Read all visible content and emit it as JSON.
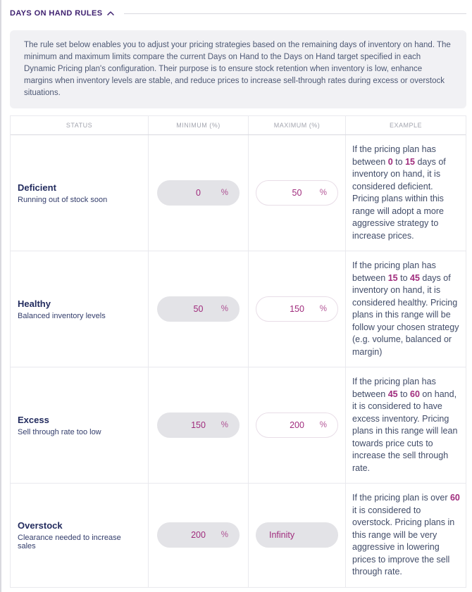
{
  "colors": {
    "brand-purple": "#3f2170",
    "value-magenta": "#a02c7d",
    "status-navy": "#222b5e",
    "subtitle-navy": "#333d6b",
    "body-slate": "#4d5874",
    "example-slate": "#414c68",
    "muted-gray": "#a2a4ae",
    "pill-disabled-bg": "#e3e3e7",
    "panel-bg": "#f1f1f4",
    "border-light": "#e9e9ee",
    "border-mid": "#d9d9df"
  },
  "section": {
    "title": "DAYS ON HAND RULES",
    "collapse_icon": "chevron-up",
    "description": "The rule set below enables you to adjust your pricing strategies based on the remaining days of inventory on hand. The minimum and maximum limits compare the current Days on Hand to the Days on Hand target specified in each Dynamic Pricing plan's configuration. Their purpose is to ensure stock retention when inventory is low, enhance margins when inventory levels are stable, and reduce prices to increase sell-through rates during excess or overstock situations."
  },
  "table": {
    "headers": [
      "STATUS",
      "MINIMUM (%)",
      "MAXIMUM (%)",
      "EXAMPLE"
    ],
    "rows": [
      {
        "status": "Deficient",
        "description": "Running out of stock soon",
        "minimum": {
          "value": "0",
          "suffix": "%",
          "disabled": true
        },
        "maximum": {
          "value": "50",
          "suffix": "%",
          "disabled": false
        },
        "example": [
          {
            "text": "If the pricing plan has between "
          },
          {
            "text": "0",
            "bold": true
          },
          {
            "text": " to "
          },
          {
            "text": "15",
            "bold": true
          },
          {
            "text": " days of inventory on hand, it is considered deficient. Pricing plans within this range will adopt a more aggressive strategy to increase prices."
          }
        ]
      },
      {
        "status": "Healthy",
        "description": "Balanced inventory levels",
        "minimum": {
          "value": "50",
          "suffix": "%",
          "disabled": true
        },
        "maximum": {
          "value": "150",
          "suffix": "%",
          "disabled": false
        },
        "example": [
          {
            "text": "If the pricing plan has between "
          },
          {
            "text": "15",
            "bold": true
          },
          {
            "text": " to "
          },
          {
            "text": "45",
            "bold": true
          },
          {
            "text": " days of inventory on hand, it is considered healthy. Pricing plans in this range will be follow your chosen strategy (e.g. volume, balanced or margin)"
          }
        ]
      },
      {
        "status": "Excess",
        "description": "Sell through rate too low",
        "minimum": {
          "value": "150",
          "suffix": "%",
          "disabled": true
        },
        "maximum": {
          "value": "200",
          "suffix": "%",
          "disabled": false
        },
        "example": [
          {
            "text": "If the pricing plan has between "
          },
          {
            "text": "45",
            "bold": true
          },
          {
            "text": " to "
          },
          {
            "text": "60",
            "bold": true
          },
          {
            "text": " on hand, it is considered to have excess inventory. Pricing plans in this range will lean towards price cuts to increase the sell through rate."
          }
        ]
      },
      {
        "status": "Overstock",
        "description": "Clearance needed to increase sales",
        "minimum": {
          "value": "200",
          "suffix": "%",
          "disabled": true
        },
        "maximum": {
          "value": "Infinity",
          "suffix": "",
          "disabled": true
        },
        "example": [
          {
            "text": "If the pricing plan is over "
          },
          {
            "text": "60",
            "bold": true
          },
          {
            "text": " it is considered to overstock. Pricing plans in this range will be very aggressive in lowering prices to improve the sell through rate."
          }
        ]
      }
    ]
  }
}
